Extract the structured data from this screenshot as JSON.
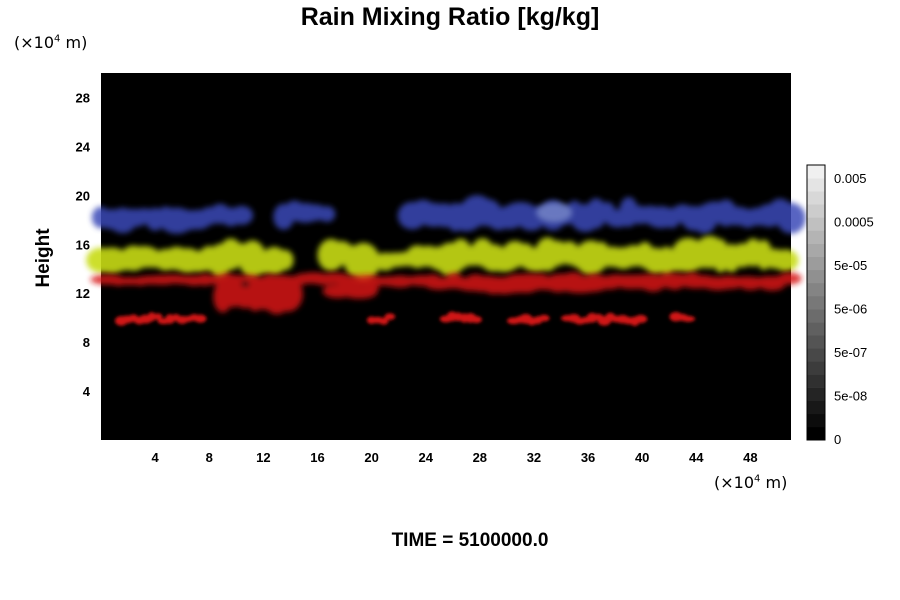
{
  "chart_data": {
    "type": "heatmap",
    "title": "Rain Mixing Ratio [kg/kg]",
    "ylabel": "Height",
    "y_unit": {
      "prefix": "(×10",
      "exp": "4",
      "suffix": " m)"
    },
    "x_unit": {
      "prefix": "(×10",
      "exp": "4",
      "suffix": " m)"
    },
    "xlim": [
      0,
      51
    ],
    "ylim": [
      0,
      30
    ],
    "x_ticks": [
      "4",
      "8",
      "12",
      "16",
      "20",
      "24",
      "28",
      "32",
      "36",
      "40",
      "44",
      "48"
    ],
    "y_ticks": [
      "4",
      "8",
      "12",
      "16",
      "20",
      "24",
      "28"
    ],
    "colorbar": {
      "labels": [
        "0.005",
        "0.0005",
        "5e-05",
        "5e-06",
        "5e-07",
        "5e-08",
        "0"
      ],
      "colors": [
        "#000000",
        "#0c0c0c",
        "#181818",
        "#242424",
        "#303030",
        "#3c3c3c",
        "#484848",
        "#545454",
        "#606060",
        "#6c6c6c",
        "#787878",
        "#848484",
        "#909090",
        "#9c9c9c",
        "#a8a8a8",
        "#b4b4b4",
        "#c0c0c0",
        "#cccccc",
        "#d8d8d8",
        "#e4e4e4",
        "#f0f0f0"
      ]
    },
    "background": "#000000",
    "layers": [
      {
        "name": "blue",
        "color": "#3a4ab8",
        "height_range": [
          17,
          20
        ]
      },
      {
        "name": "yellow",
        "color": "#c8dc14",
        "height_range": [
          13,
          17
        ]
      },
      {
        "name": "red",
        "color": "#d81818",
        "height_range": [
          9.5,
          13.5
        ]
      }
    ],
    "time": "TIME = 5100000.0"
  }
}
